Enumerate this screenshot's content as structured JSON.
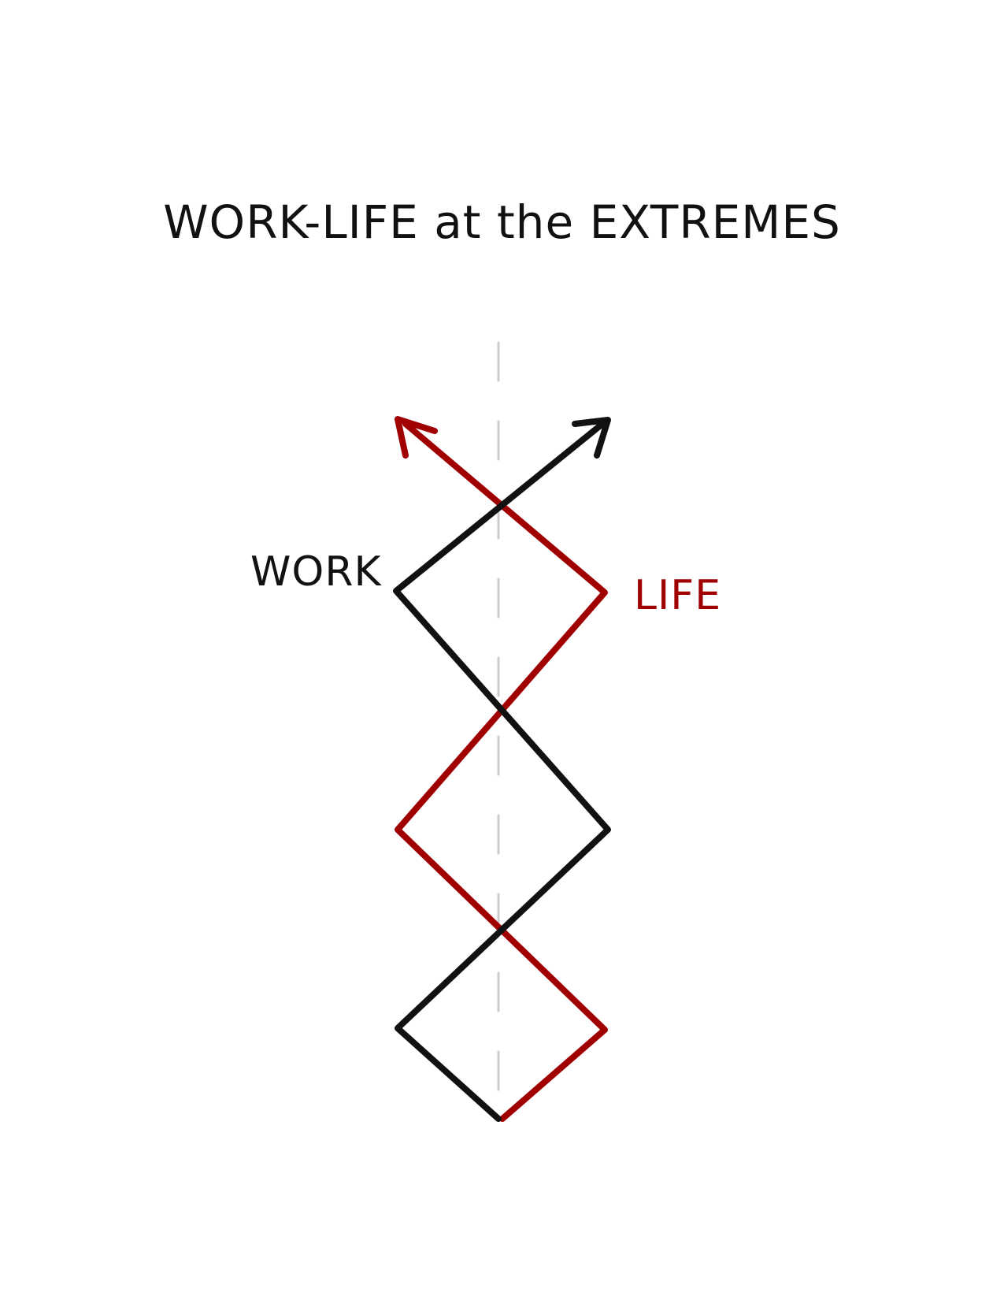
{
  "diagram": {
    "title": "WORK-LIFE at the EXTREMES",
    "work_label": "WORK",
    "life_label": "LIFE",
    "colors": {
      "work": "#111111",
      "life": "#a00000",
      "center_line": "#cccccc",
      "background": "#ffffff"
    }
  }
}
